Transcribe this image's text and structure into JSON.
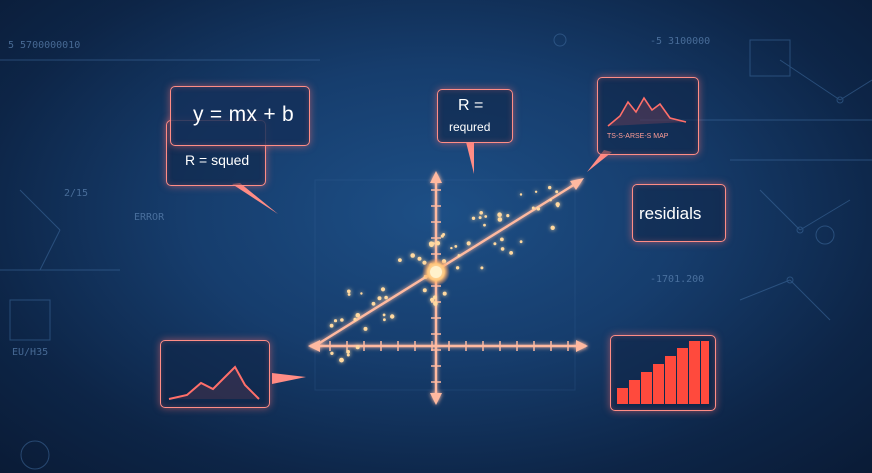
{
  "background_text": {
    "t1": "5 5700000010",
    "t2": "-5 3100000",
    "t3": "2/15",
    "t4": "ERROR",
    "t5": "-1701.200",
    "t6": "EU/H35"
  },
  "labels": {
    "equation": "y = mx + b",
    "r_squared": "R = squed",
    "r_required_line1": "R =",
    "r_required_line2": "requred",
    "residuals": "residials",
    "chart_caption": "TS-S-ARSE-S MAP"
  },
  "colors": {
    "accent": "#ff8d86",
    "glow": "#ffd9a0",
    "bar": "#ff4a3d",
    "background": "#163d6d"
  },
  "icons": [
    "distribution-curve-icon",
    "bar-chart-icon"
  ]
}
